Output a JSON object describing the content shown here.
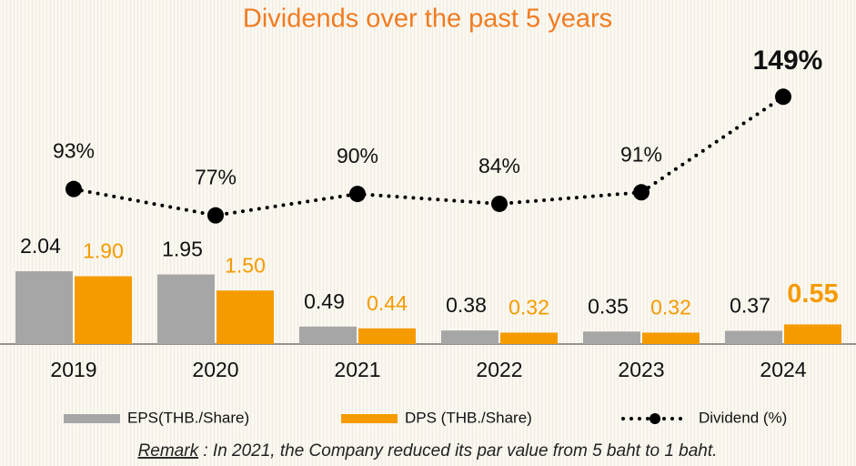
{
  "chart_data": {
    "type": "bar",
    "title": "Dividends over the past 5 years",
    "categories": [
      "2019",
      "2020",
      "2021",
      "2022",
      "2023",
      "2024"
    ],
    "series": [
      {
        "name": "EPS(THB./Share)",
        "color": "#a6a6a6",
        "values": [
          2.04,
          1.95,
          0.49,
          0.38,
          0.35,
          0.37
        ],
        "value_labels": [
          "2.04",
          "1.95",
          "0.49",
          "0.38",
          "0.35",
          "0.37"
        ]
      },
      {
        "name": "DPS (THB./Share)",
        "color": "#f59b00",
        "values": [
          1.9,
          1.5,
          0.44,
          0.32,
          0.32,
          0.55
        ],
        "value_labels": [
          "1.90",
          "1.50",
          "0.44",
          "0.32",
          "0.32",
          "0.55"
        ]
      },
      {
        "name": "Dividend (%)",
        "type": "line",
        "axis": "y2",
        "color": "#000000",
        "values": [
          93,
          77,
          90,
          84,
          91,
          149
        ],
        "value_labels": [
          "93%",
          "77%",
          "90%",
          "84%",
          "91%",
          "149%"
        ]
      }
    ],
    "ylim": [
      0,
      5
    ],
    "y2lim": [
      0,
      150
    ],
    "remark_label": "Remark",
    "remark_text": " : In 2021, the Company reduced its par value from 5 baht to 1 baht."
  }
}
